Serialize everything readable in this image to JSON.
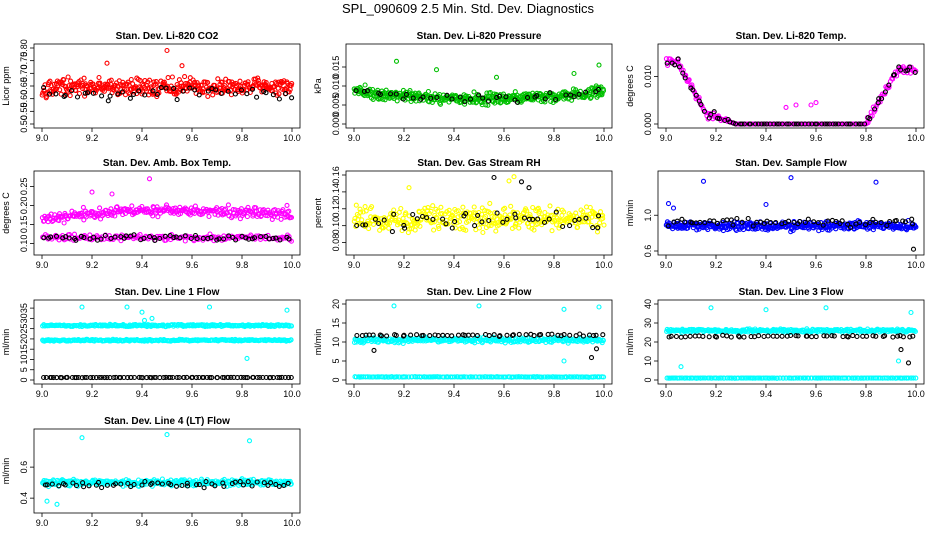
{
  "figure": {
    "title": "SPL_090609  2.5 Min. Std. Dev. Diagnostics"
  },
  "chart_data": [
    {
      "type": "scatter",
      "title": "Stan. Dev. Li-820 CO2",
      "xlabel": "",
      "ylabel": "Licor ppm",
      "xlim": [
        9.0,
        10.0
      ],
      "ylim": [
        0.5,
        0.8
      ],
      "xticks": [
        "9.0",
        "9.2",
        "9.4",
        "9.6",
        "9.8",
        "10.0"
      ],
      "yticks": [
        "0.50",
        "0.55",
        "0.60",
        "0.65",
        "0.70",
        "0.75",
        "0.80"
      ],
      "grid": false,
      "series": [
        {
          "color": "#ff0000",
          "pattern": "band",
          "n": 380,
          "mid": 0.645,
          "spread": 0.05,
          "outliers": [
            [
              9.04,
              0.82
            ],
            [
              9.36,
              0.83
            ],
            [
              9.5,
              0.79
            ],
            [
              9.56,
              0.73
            ],
            [
              9.26,
              0.74
            ]
          ]
        },
        {
          "color": "#000000",
          "pattern": "band",
          "n": 45,
          "mid": 0.62,
          "spread": 0.04,
          "outliers": []
        }
      ]
    },
    {
      "type": "scatter",
      "title": "Stan. Dev. Li-820 Pressure",
      "xlabel": "",
      "ylabel": "kPa",
      "xlim": [
        9.0,
        10.0
      ],
      "ylim": [
        0.0,
        0.02
      ],
      "xticks": [
        "9.0",
        "9.2",
        "9.4",
        "9.6",
        "9.8",
        "10.0"
      ],
      "yticks": [
        "0.000",
        "0.005",
        "0.010",
        "0.015"
      ],
      "grid": false,
      "series": [
        {
          "color": "#00c000",
          "pattern": "bowl",
          "n": 420,
          "mid": 0.0085,
          "spread": 0.0022,
          "outliers": [
            [
              9.17,
              0.0165
            ],
            [
              9.33,
              0.0143
            ],
            [
              9.57,
              0.0123
            ],
            [
              9.88,
              0.0133
            ],
            [
              9.98,
              0.0155
            ]
          ]
        },
        {
          "color": "#000000",
          "pattern": "bowl",
          "n": 40,
          "mid": 0.0085,
          "spread": 0.0015,
          "outliers": []
        }
      ]
    },
    {
      "type": "scatter",
      "title": "Stan. Dev. Li-820 Temp.",
      "xlabel": "",
      "ylabel": "degrees C",
      "xlim": [
        9.0,
        10.0
      ],
      "ylim": [
        0.0,
        0.016
      ],
      "xticks": [
        "9.0",
        "9.2",
        "9.4",
        "9.6",
        "9.8",
        "10.0"
      ],
      "yticks": [
        "0.000",
        "0.010"
      ],
      "grid": false,
      "series": [
        {
          "color": "#ff00ff",
          "pattern": "temp",
          "n": 260,
          "outliers": [
            [
              9.52,
              0.004
            ],
            [
              9.58,
              0.004
            ],
            [
              9.6,
              0.0045
            ],
            [
              9.48,
              0.0035
            ]
          ]
        },
        {
          "color": "#000000",
          "pattern": "temp",
          "n": 80,
          "outliers": []
        }
      ]
    },
    {
      "type": "scatter",
      "title": "Stan. Dev. Amb. Box Temp.",
      "xlabel": "",
      "ylabel": "degrees C",
      "xlim": [
        9.0,
        10.0
      ],
      "ylim": [
        0.08,
        0.28
      ],
      "xticks": [
        "9.0",
        "9.2",
        "9.4",
        "9.6",
        "9.8",
        "10.0"
      ],
      "yticks": [
        "0.10",
        "0.15",
        "0.20",
        "0.25"
      ],
      "grid": false,
      "series": [
        {
          "color": "#ff00ff",
          "pattern": "arch",
          "n": 300,
          "mid": 0.175,
          "spread": 0.02,
          "outliers": [
            [
              9.43,
              0.27
            ],
            [
              9.2,
              0.235
            ],
            [
              9.28,
              0.23
            ],
            [
              9.98,
              0.2
            ]
          ]
        },
        {
          "color": "#ff00ff",
          "pattern": "band",
          "n": 180,
          "mid": 0.115,
          "spread": 0.012,
          "outliers": []
        },
        {
          "color": "#000000",
          "pattern": "band",
          "n": 60,
          "mid": 0.115,
          "spread": 0.01,
          "outliers": []
        }
      ]
    },
    {
      "type": "scatter",
      "title": "Stan. Dev. Gas Stream RH",
      "xlabel": "",
      "ylabel": "percent",
      "xlim": [
        9.0,
        10.0
      ],
      "ylim": [
        0.07,
        0.16
      ],
      "xticks": [
        "9.0",
        "9.2",
        "9.4",
        "9.6",
        "9.8",
        "10.0"
      ],
      "yticks": [
        "0.08",
        "0.10",
        "0.12",
        "0.14",
        "0.16"
      ],
      "grid": false,
      "series": [
        {
          "color": "#ffff00",
          "pattern": "band",
          "n": 360,
          "mid": 0.108,
          "spread": 0.02,
          "outliers": [
            [
              9.64,
              0.158
            ],
            [
              9.62,
              0.153
            ],
            [
              9.22,
              0.145
            ]
          ]
        },
        {
          "color": "#000000",
          "pattern": "band",
          "n": 45,
          "mid": 0.105,
          "spread": 0.018,
          "outliers": [
            [
              9.56,
              0.157
            ],
            [
              9.67,
              0.152
            ],
            [
              9.7,
              0.145
            ]
          ]
        }
      ]
    },
    {
      "type": "scatter",
      "title": "Stan. Dev. Sample Flow",
      "xlabel": "",
      "ylabel": "ml/min",
      "xlim": [
        9.0,
        10.0
      ],
      "ylim": [
        0.6,
        1.45
      ],
      "xticks": [
        "9.0",
        "9.2",
        "9.4",
        "9.6",
        "9.8",
        "10.0"
      ],
      "yticks": [
        "0.6",
        "1.0"
      ],
      "grid": false,
      "series": [
        {
          "color": "#0000ff",
          "pattern": "band",
          "n": 380,
          "mid": 0.88,
          "spread": 0.07,
          "outliers": [
            [
              9.15,
              1.38
            ],
            [
              9.5,
              1.42
            ],
            [
              9.84,
              1.37
            ],
            [
              9.4,
              1.12
            ],
            [
              9.01,
              1.13
            ],
            [
              9.03,
              1.08
            ]
          ]
        },
        {
          "color": "#000000",
          "pattern": "band",
          "n": 60,
          "mid": 0.92,
          "spread": 0.06,
          "outliers": [
            [
              9.99,
              0.62
            ]
          ]
        }
      ]
    },
    {
      "type": "scatter",
      "title": "Stan. Dev. Line 1 Flow",
      "xlabel": "",
      "ylabel": "ml/min",
      "xlim": [
        9.0,
        10.0
      ],
      "ylim": [
        0,
        37
      ],
      "xticks": [
        "9.0",
        "9.2",
        "9.4",
        "9.6",
        "9.8",
        "10.0"
      ],
      "yticks": [
        "0",
        "5",
        "10",
        "15",
        "20",
        "25",
        "30",
        "35"
      ],
      "grid": false,
      "series": [
        {
          "color": "#00ffff",
          "pattern": "band",
          "n": 260,
          "mid": 26.5,
          "spread": 0.7,
          "outliers": [
            [
              9.16,
              35.5
            ],
            [
              9.34,
              35.5
            ],
            [
              9.4,
              33
            ],
            [
              9.44,
              30
            ],
            [
              9.41,
              29
            ],
            [
              9.67,
              35.5
            ],
            [
              9.98,
              34
            ]
          ]
        },
        {
          "color": "#00ffff",
          "pattern": "band",
          "n": 260,
          "mid": 19.3,
          "spread": 0.6,
          "outliers": [
            [
              9.82,
              10.5
            ]
          ]
        },
        {
          "color": "#000000",
          "pattern": "flat",
          "n": 90,
          "mid": 1.2,
          "spread": 0.1,
          "outliers": []
        }
      ]
    },
    {
      "type": "scatter",
      "title": "Stan. Dev. Line 2 Flow",
      "xlabel": "",
      "ylabel": "ml/min",
      "xlim": [
        9.0,
        10.0
      ],
      "ylim": [
        0,
        20
      ],
      "xticks": [
        "9.0",
        "9.2",
        "9.4",
        "9.6",
        "9.8",
        "10.0"
      ],
      "yticks": [
        "0",
        "5",
        "10",
        "15",
        "20"
      ],
      "grid": false,
      "series": [
        {
          "color": "#00ffff",
          "pattern": "band",
          "n": 300,
          "mid": 10.5,
          "spread": 1.0,
          "outliers": [
            [
              9.16,
              19.5
            ],
            [
              9.5,
              19.5
            ],
            [
              9.84,
              18.6
            ],
            [
              9.98,
              19.2
            ],
            [
              9.84,
              5.0
            ]
          ]
        },
        {
          "color": "#00ffff",
          "pattern": "flat",
          "n": 160,
          "mid": 0.8,
          "spread": 0.1,
          "outliers": []
        },
        {
          "color": "#000000",
          "pattern": "band",
          "n": 55,
          "mid": 11.8,
          "spread": 0.4,
          "outliers": [
            [
              9.08,
              7.8
            ],
            [
              9.97,
              8.2
            ],
            [
              9.95,
              5.9
            ]
          ]
        }
      ]
    },
    {
      "type": "scatter",
      "title": "Stan. Dev. Line 3 Flow",
      "xlabel": "",
      "ylabel": "ml/min",
      "xlim": [
        9.0,
        10.0
      ],
      "ylim": [
        0,
        40
      ],
      "xticks": [
        "9.0",
        "9.2",
        "9.4",
        "9.6",
        "9.8",
        "10.0"
      ],
      "yticks": [
        "0",
        "10",
        "20",
        "30",
        "40"
      ],
      "grid": false,
      "series": [
        {
          "color": "#00ffff",
          "pattern": "band",
          "n": 300,
          "mid": 26.0,
          "spread": 1.2,
          "outliers": [
            [
              9.18,
              38
            ],
            [
              9.4,
              37
            ],
            [
              9.64,
              38
            ],
            [
              9.98,
              35.5
            ],
            [
              9.06,
              7
            ],
            [
              9.93,
              10
            ]
          ]
        },
        {
          "color": "#00ffff",
          "pattern": "flat",
          "n": 160,
          "mid": 1.0,
          "spread": 0.1,
          "outliers": []
        },
        {
          "color": "#000000",
          "pattern": "band",
          "n": 55,
          "mid": 23.0,
          "spread": 0.6,
          "outliers": [
            [
              9.97,
              9
            ],
            [
              9.94,
              16
            ]
          ]
        }
      ]
    },
    {
      "type": "scatter",
      "title": "Stan. Dev. Line 4 (LT) Flow",
      "xlabel": "",
      "ylabel": "ml/min",
      "xlim": [
        9.0,
        10.0
      ],
      "ylim": [
        0.33,
        0.82
      ],
      "xticks": [
        "9.0",
        "9.2",
        "9.4",
        "9.6",
        "9.8",
        "10.0"
      ],
      "yticks": [
        "0.4",
        "0.6"
      ],
      "grid": false,
      "series": [
        {
          "color": "#00ffff",
          "pattern": "band",
          "n": 330,
          "mid": 0.5,
          "spread": 0.03,
          "outliers": [
            [
              9.16,
              0.79
            ],
            [
              9.5,
              0.81
            ],
            [
              9.83,
              0.77
            ],
            [
              9.06,
              0.36
            ],
            [
              9.02,
              0.38
            ]
          ]
        },
        {
          "color": "#000000",
          "pattern": "band",
          "n": 55,
          "mid": 0.49,
          "spread": 0.03,
          "outliers": []
        }
      ]
    }
  ]
}
